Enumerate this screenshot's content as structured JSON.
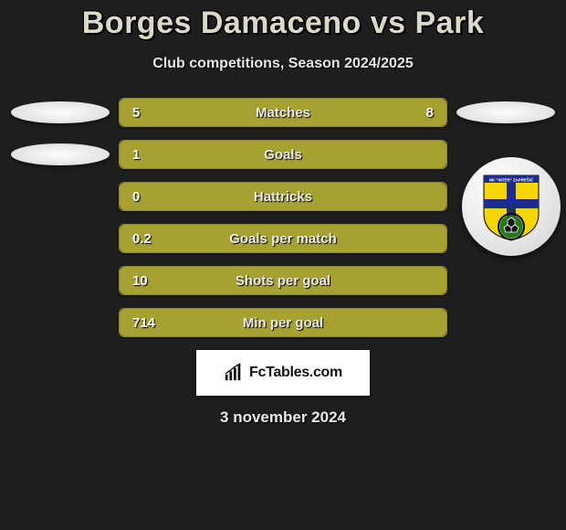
{
  "title": "Borges Damaceno vs Park",
  "subtitle": "Club competitions, Season 2024/2025",
  "date": "3 november 2024",
  "brand": "FcTables.com",
  "colors": {
    "bar": "#a6a231",
    "bar_border": "#8d891d",
    "background": "#1e1e1e",
    "title_text": "#dcd9c6",
    "text": "#ffffff",
    "crest_primary": "#1d2e8a",
    "crest_secondary": "#f5d600",
    "crest_field": "#1f7a1f"
  },
  "bars": [
    {
      "label": "Matches",
      "left": "5",
      "right": "8",
      "left_pct": 38,
      "right_pct": 62,
      "show_right": true
    },
    {
      "label": "Goals",
      "left": "1",
      "right": "",
      "left_pct": 100,
      "right_pct": 0,
      "show_right": false
    },
    {
      "label": "Hattricks",
      "left": "0",
      "right": "",
      "left_pct": 100,
      "right_pct": 0,
      "show_right": false
    },
    {
      "label": "Goals per match",
      "left": "0.2",
      "right": "",
      "left_pct": 100,
      "right_pct": 0,
      "show_right": false
    },
    {
      "label": "Shots per goal",
      "left": "10",
      "right": "",
      "left_pct": 100,
      "right_pct": 0,
      "show_right": false
    },
    {
      "label": "Min per goal",
      "left": "714",
      "right": "",
      "left_pct": 100,
      "right_pct": 0,
      "show_right": false
    }
  ],
  "players": {
    "left_has_ellipse_rows": [
      0,
      1
    ],
    "right_has_ellipse_rows": [
      0
    ]
  },
  "crest_text_top": "NK \"INTER\" ZAPREŠIĆ"
}
